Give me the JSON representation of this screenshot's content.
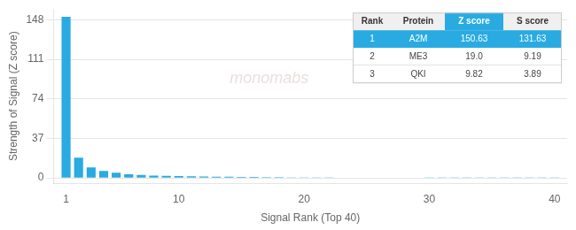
{
  "chart_data": {
    "type": "bar",
    "x": [
      1,
      2,
      3,
      4,
      5,
      6,
      7,
      8,
      9,
      10,
      11,
      12,
      13,
      14,
      15,
      16,
      17,
      18,
      19,
      20,
      21,
      22,
      23,
      24,
      25,
      26,
      27,
      28,
      29,
      30,
      31,
      32,
      33,
      34,
      35,
      36,
      37,
      38,
      39,
      40
    ],
    "values": [
      150.63,
      19.0,
      9.82,
      6.5,
      4.8,
      3.5,
      2.8,
      2.3,
      2.0,
      1.75,
      1.55,
      1.38,
      1.22,
      1.08,
      0.97,
      0.87,
      0.78,
      0.7,
      0.63,
      0.57,
      0.52,
      0.47,
      0.43,
      0.39,
      0.35,
      0.32,
      0.29,
      0.27,
      0.24,
      0.22,
      0.2,
      0.18,
      0.17,
      0.15,
      0.14,
      0.13,
      0.12,
      0.11,
      0.1,
      0.09
    ],
    "color": "#29ABE2",
    "xlabel": "Signal Rank (Top 40)",
    "ylabel": "Strength of Signal (Z score)",
    "xlim": [
      0,
      41
    ],
    "xticks": [
      1,
      10,
      20,
      30,
      40
    ],
    "ylim": [
      -5,
      158
    ],
    "yticks": [
      0,
      37,
      74,
      111,
      148
    ],
    "grid": true,
    "annotations": [
      {
        "text": "monomabs"
      }
    ],
    "table": {
      "header": [
        "Rank",
        "Protein",
        "Z score",
        "S score"
      ],
      "rows": [
        [
          "1",
          "A2M",
          "150.63",
          "131.63"
        ],
        [
          "2",
          "ME3",
          "19.0",
          "9.19"
        ],
        [
          "3",
          "QKI",
          "9.82",
          "3.89"
        ]
      ]
    }
  }
}
